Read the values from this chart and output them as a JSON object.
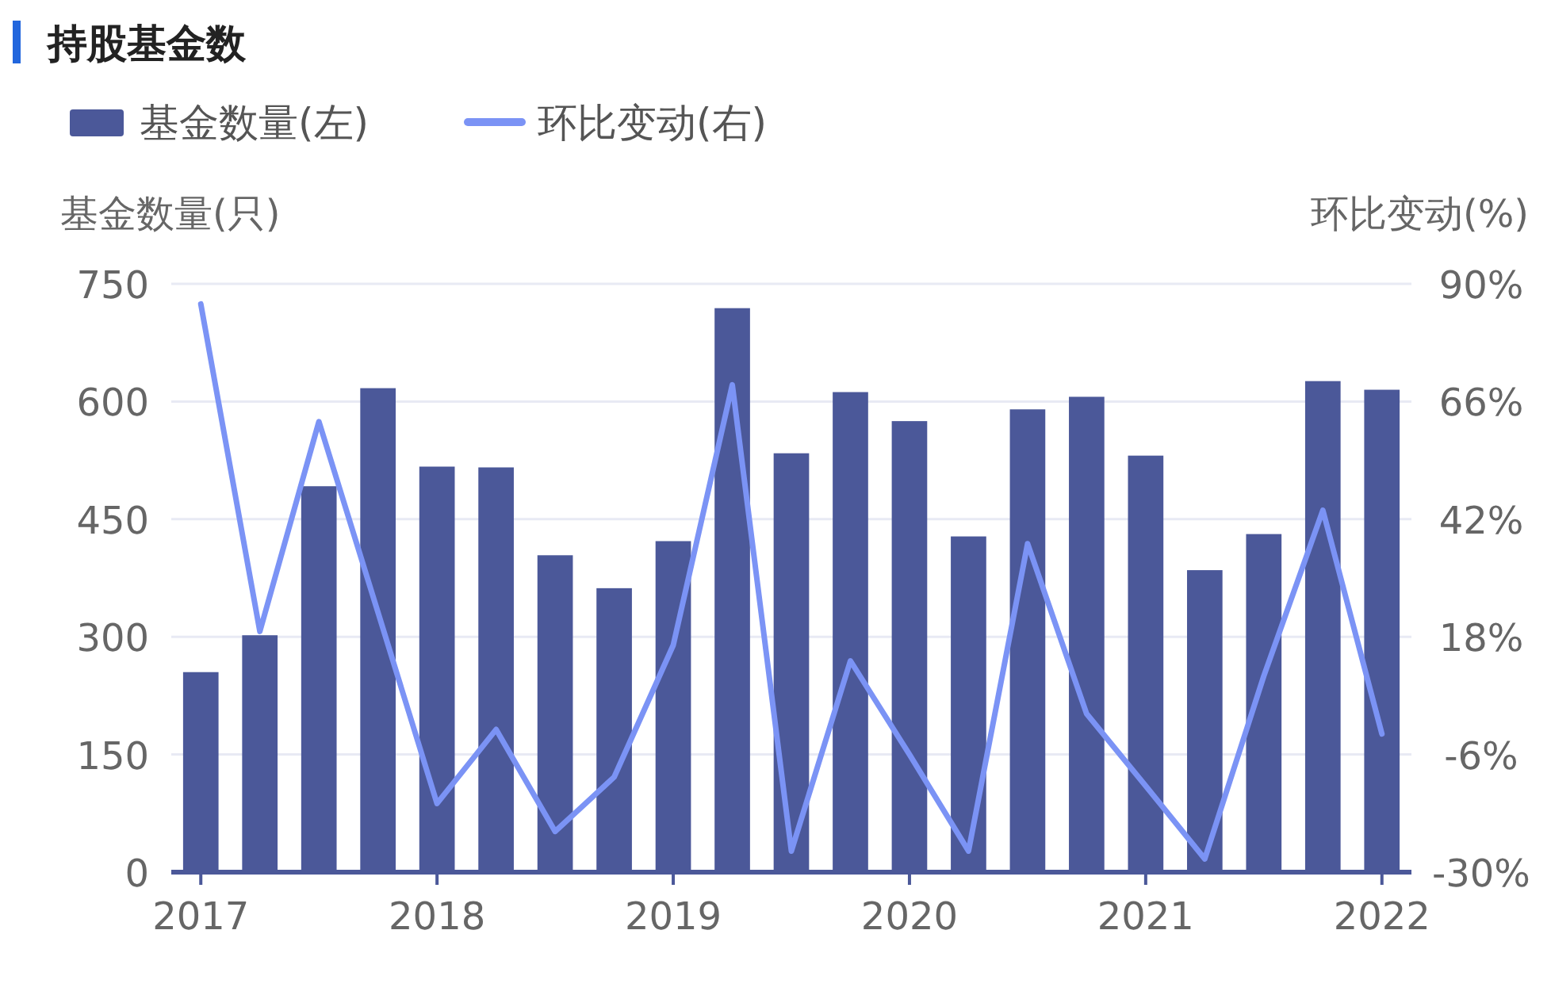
{
  "chart_data": {
    "type": "bar",
    "title": "持股基金数",
    "ylabel": "基金数量(只)",
    "y2label": "环比变动(%)",
    "categories": [
      "2017",
      null,
      null,
      null,
      "2018",
      null,
      null,
      null,
      "2019",
      null,
      null,
      null,
      "2020",
      null,
      null,
      null,
      "2021",
      null,
      null,
      null,
      "2022"
    ],
    "series": [
      {
        "name": "基金数量(左)",
        "color": "#4b5899",
        "values": [
          255,
          302,
          492,
          617,
          517,
          516,
          404,
          362,
          422,
          719,
          534,
          612,
          575,
          428,
          590,
          606,
          531,
          385,
          431,
          626,
          615
        ]
      },
      {
        "name": "环比变动(右)",
        "type": "line",
        "axis": "y2",
        "color": "#7b93f5",
        "values": [
          85.9,
          19.1,
          61.9,
          23,
          -16,
          -0.9,
          -21.7,
          -10.6,
          16.3,
          69.4,
          -25.7,
          13.1,
          -6,
          -25.7,
          37,
          2.3,
          -12.4,
          -27.3,
          10,
          43.8,
          -1.8
        ]
      }
    ],
    "ylim": [
      0,
      750
    ],
    "yticks": [
      0,
      150,
      300,
      450,
      600,
      750
    ],
    "y2lim": [
      -30,
      90
    ],
    "y2ticks": [
      {
        "value": -30,
        "label": "-30%"
      },
      {
        "value": -6,
        "label": "-6%"
      },
      {
        "value": 18,
        "label": "18%"
      },
      {
        "value": 42,
        "label": "42%"
      },
      {
        "value": 66,
        "label": "66%"
      },
      {
        "value": 90,
        "label": "90%"
      }
    ],
    "grid": "y",
    "legend": "top left",
    "marker": "none",
    "line_style": "solid"
  }
}
